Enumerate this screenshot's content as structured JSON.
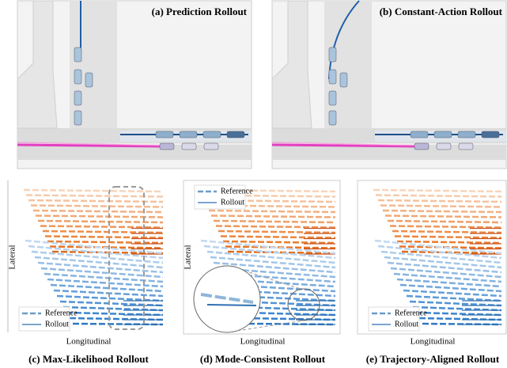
{
  "panels": [
    {
      "label": "(a) Prediction Rollout"
    },
    {
      "label": "(b) Constant-Action Rollout"
    }
  ],
  "plots": [
    {
      "caption": "(c) Max-Likelihood Rollout",
      "y_label": "Lateral",
      "x_label": "Longitudinal",
      "legend": [
        "Reference",
        "Rollout"
      ]
    },
    {
      "caption": "(d) Mode-Consistent Rollout",
      "y_label": "Lateral",
      "x_label": "Longitudinal",
      "legend": [
        "Reference",
        "Rollout"
      ]
    },
    {
      "caption": "(e) Trajectory-Aligned Rollout",
      "x_label": "Longitudinal",
      "legend": [
        "Reference",
        "Rollout"
      ]
    }
  ]
}
